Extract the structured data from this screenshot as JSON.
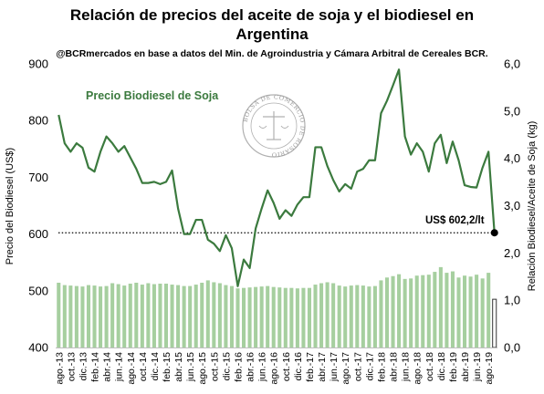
{
  "colors": {
    "price_line": "#3b7a3e",
    "ratio_bar": "#a6cf9f",
    "ratio_bar_last": "#ffffff",
    "ratio_bar_last_stroke": "#333333",
    "reference_line": "#000000",
    "marker": "#000000",
    "seal": "#b0b0b0"
  },
  "chart_data": {
    "type": "line",
    "title": "Relación de precios del aceite de soja y el biodiesel en Argentina",
    "title_lines": [
      "Relación de precios del aceite de soja y el biodiesel en",
      "Argentina"
    ],
    "subtitle": "@BCRmercados en base a datos del Min. de Agroindustria y Cámara Arbitral de Cereales BCR.",
    "ylabel_left": "Precio del Biodiesel (US$)",
    "ylabel_right": "Relación Biodiesel/Aceite de Soja (kg)",
    "ylim_left": [
      400,
      900
    ],
    "ylim_right": [
      0,
      6
    ],
    "yticks_left": [
      400,
      500,
      600,
      700,
      800,
      900
    ],
    "yticks_right": [
      "0,0",
      "1,0",
      "2,0",
      "3,0",
      "4,0",
      "5,0",
      "6,0"
    ],
    "x_tick_labels": [
      "ago.-13",
      "oct.-13",
      "dic.-13",
      "feb.-14",
      "abr.-14",
      "jun.-14",
      "ago.-14",
      "oct.-14",
      "dic.-14",
      "feb.-15",
      "abr.-15",
      "jun.-15",
      "ago.-15",
      "oct.-15",
      "dic.-15",
      "feb.-16",
      "abr.-16",
      "jun.-16",
      "ago.-16",
      "oct.-16",
      "dic.-16",
      "feb.-17",
      "abr.-17",
      "jun.-17",
      "ago.-17",
      "oct.-17",
      "dic.-17",
      "feb.-18",
      "abr.-18",
      "jun.-18",
      "ago.-18",
      "oct.-18",
      "dic.-18",
      "feb.-19",
      "abr.-19",
      "jun.-19",
      "ago.-19"
    ],
    "grid": false,
    "series": [
      {
        "name": "Precio Biodiesel de Soja",
        "axis": "left",
        "kind": "line",
        "values": [
          810,
          760,
          745,
          760,
          752,
          717,
          710,
          745,
          772,
          760,
          745,
          755,
          735,
          715,
          690,
          690,
          692,
          688,
          692,
          712,
          645,
          600,
          600,
          625,
          625,
          590,
          583,
          570,
          598,
          575,
          508,
          555,
          540,
          610,
          645,
          677,
          655,
          627,
          642,
          632,
          652,
          665,
          665,
          753,
          753,
          720,
          695,
          675,
          688,
          680,
          710,
          715,
          730,
          730,
          813,
          835,
          862,
          890,
          772,
          740,
          760,
          745,
          710,
          760,
          775,
          725,
          763,
          730,
          686,
          683,
          682,
          717,
          745,
          602.2
        ]
      },
      {
        "name": "Relación Biodiesel/Aceite de Soja",
        "axis": "right",
        "kind": "bar",
        "values": [
          1.37,
          1.32,
          1.31,
          1.3,
          1.29,
          1.32,
          1.31,
          1.29,
          1.3,
          1.36,
          1.34,
          1.31,
          1.35,
          1.37,
          1.33,
          1.36,
          1.34,
          1.35,
          1.35,
          1.33,
          1.32,
          1.3,
          1.3,
          1.33,
          1.37,
          1.42,
          1.38,
          1.36,
          1.32,
          1.3,
          1.25,
          1.26,
          1.27,
          1.28,
          1.29,
          1.3,
          1.28,
          1.27,
          1.26,
          1.26,
          1.25,
          1.26,
          1.26,
          1.33,
          1.36,
          1.38,
          1.36,
          1.31,
          1.29,
          1.31,
          1.32,
          1.31,
          1.29,
          1.3,
          1.42,
          1.48,
          1.51,
          1.55,
          1.45,
          1.46,
          1.52,
          1.53,
          1.54,
          1.6,
          1.7,
          1.58,
          1.61,
          1.48,
          1.52,
          1.5,
          1.54,
          1.46,
          1.58,
          1.02
        ]
      }
    ],
    "reference_line": {
      "value": 602.2,
      "axis": "left",
      "style": "dotted",
      "label": "US$ 602,2/lt"
    },
    "series_label": "Precio Biodiesel de Soja",
    "seal_text": "BOLSA DE COMERCIO DE ROSARIO"
  }
}
